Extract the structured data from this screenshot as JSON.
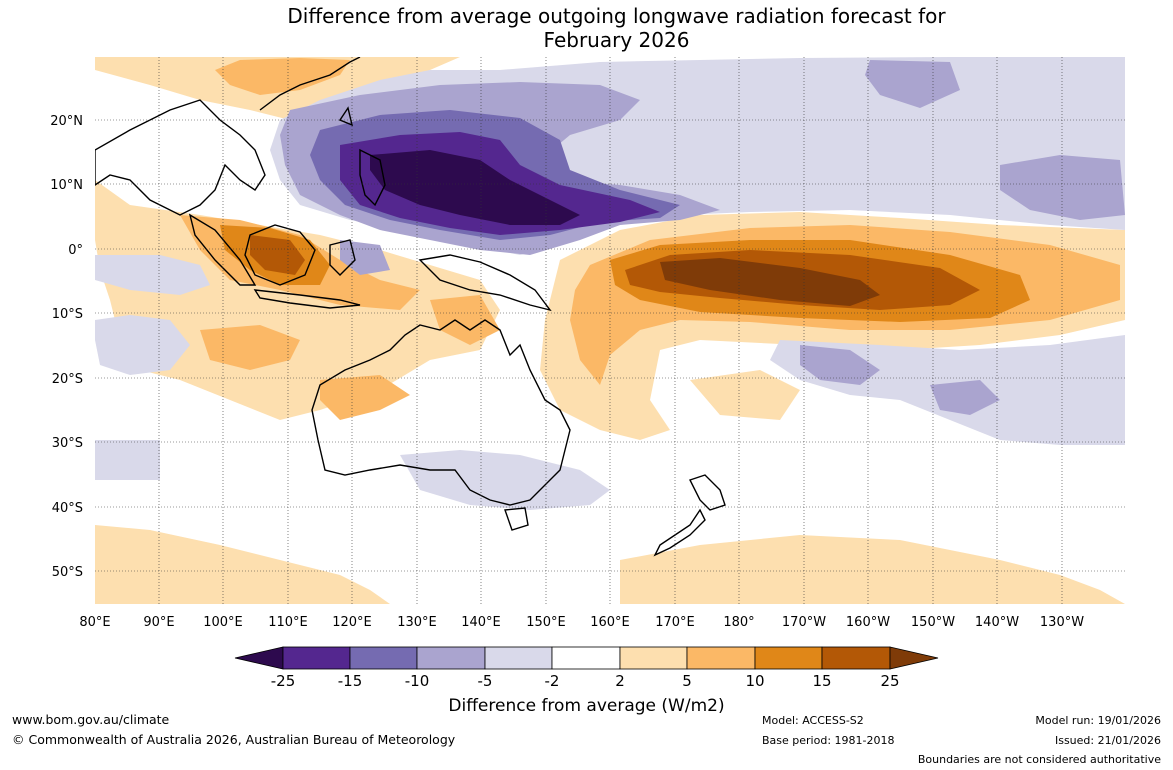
{
  "title": {
    "line1": "Difference from average outgoing longwave radiation forecast for",
    "line2": "February 2026"
  },
  "map": {
    "lat_labels": [
      "20°N",
      "10°N",
      "0°",
      "10°S",
      "20°S",
      "30°S",
      "40°S",
      "50°S"
    ],
    "lon_labels": [
      "80°E",
      "90°E",
      "100°E",
      "110°E",
      "120°E",
      "130°E",
      "140°E",
      "150°E",
      "160°E",
      "170°E",
      "180°",
      "170°W",
      "160°W",
      "150°W",
      "140°W",
      "130°W"
    ]
  },
  "colorbar": {
    "tick_labels": [
      "-25",
      "-15",
      "-10",
      "-5",
      "-2",
      "2",
      "5",
      "10",
      "15",
      "25"
    ],
    "colors": [
      "#2d0a4e",
      "#54278f",
      "#756bb1",
      "#aaa4cf",
      "#d9d9ea",
      "#ffffff",
      "#fddfaf",
      "#fbb866",
      "#e08718",
      "#b35806",
      "#7f3b08"
    ],
    "title": "Difference from average (W/m2)"
  },
  "footer": {
    "url": "www.bom.gov.au/climate",
    "copyright": "© Commonwealth of Australia 2026, Australian Bureau of Meteorology",
    "model": "Model: ACCESS-S2",
    "base_period": "Base period: 1981-2018",
    "model_run": "Model run: 19/01/2026",
    "issued": "Issued: 21/01/2026",
    "boundaries": "Boundaries are not considered authoritative"
  }
}
